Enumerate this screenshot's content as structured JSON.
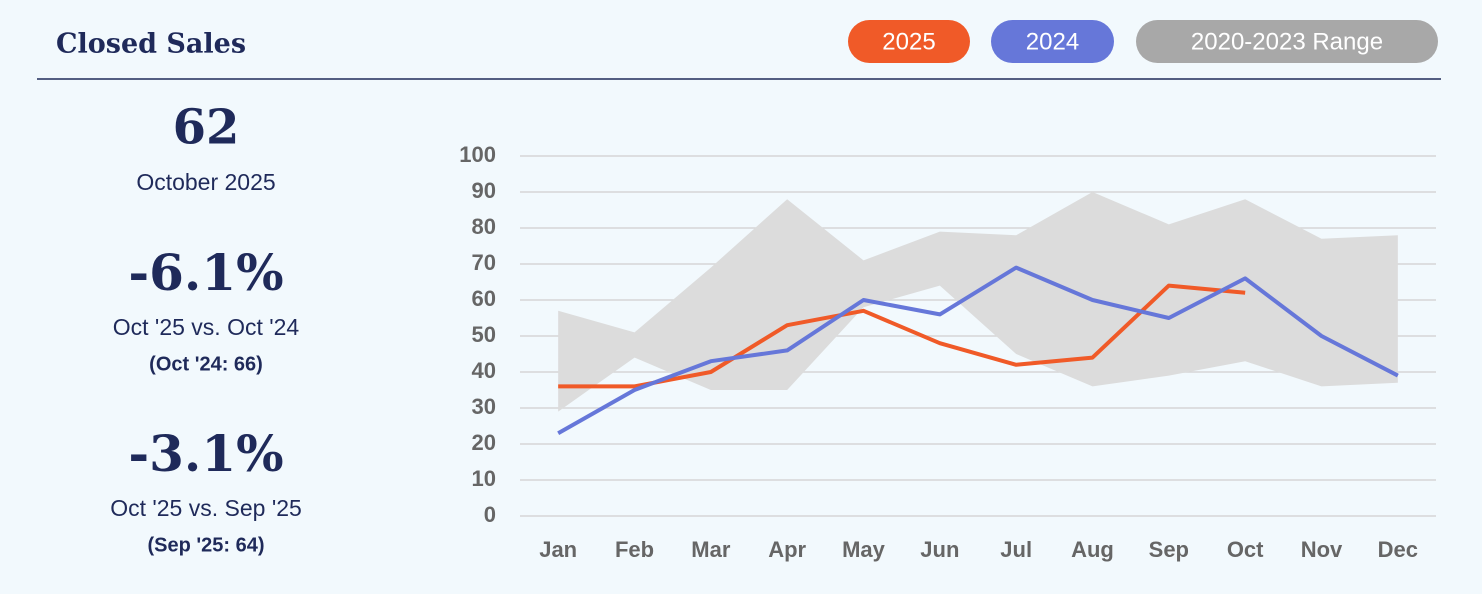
{
  "header": {
    "title": "Closed Sales"
  },
  "summary": {
    "value": "62",
    "period": "October 2025",
    "comparisons": [
      {
        "change": "-6.1%",
        "label": "Oct '25 vs. Oct '24",
        "prior": "(Oct '24: 66)"
      },
      {
        "change": "-3.1%",
        "label": "Oct '25 vs. Sep '25",
        "prior": "(Sep '25: 64)"
      }
    ]
  },
  "chart_data": {
    "type": "line",
    "categories": [
      "Jan",
      "Feb",
      "Mar",
      "Apr",
      "May",
      "Jun",
      "Jul",
      "Aug",
      "Sep",
      "Oct",
      "Nov",
      "Dec"
    ],
    "series": [
      {
        "name": "2025",
        "color": "#f05a28",
        "values": [
          36,
          36,
          40,
          53,
          57,
          48,
          42,
          44,
          64,
          62,
          null,
          null
        ]
      },
      {
        "name": "2024",
        "color": "#6677d9",
        "values": [
          23,
          35,
          43,
          46,
          60,
          56,
          69,
          60,
          55,
          66,
          50,
          39
        ]
      },
      {
        "name": "2020-2023 Range",
        "color": "#dcdcdc",
        "legend_color": "#a8a8a8",
        "low": [
          29,
          44,
          35,
          35,
          58,
          64,
          45,
          36,
          39,
          43,
          36,
          37
        ],
        "high": [
          57,
          51,
          69,
          88,
          71,
          79,
          78,
          90,
          81,
          88,
          77,
          78
        ]
      }
    ],
    "ylim": [
      0,
      100
    ],
    "yticks": [
      0,
      10,
      20,
      30,
      40,
      50,
      60,
      70,
      80,
      90,
      100
    ],
    "grid": true
  }
}
